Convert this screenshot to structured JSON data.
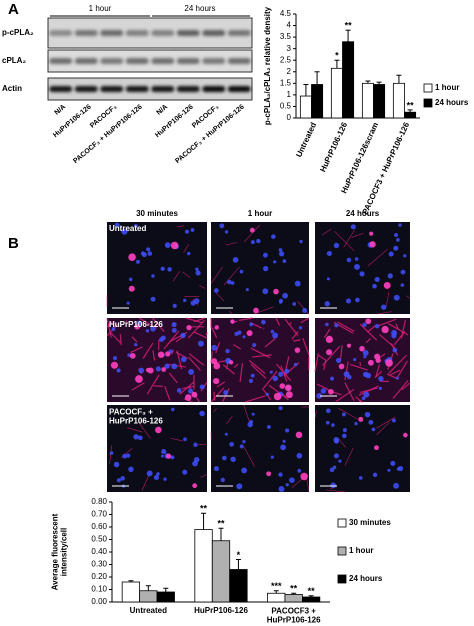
{
  "figure": {
    "panel_a": {
      "label": "A",
      "blot": {
        "groups": [
          "1 hour",
          "24 hours"
        ],
        "rows": [
          "p-cPLA₂",
          "cPLA₂",
          "Actin"
        ],
        "lanes": [
          "N/A",
          "HuPrP106-126",
          "PACOCF₃",
          "PACOCF₃ + HuPrP106-126",
          "N/A",
          "HuPrP106-126",
          "PACOCF₃",
          "PACOCF₃ + HuPrP106-126"
        ]
      }
    },
    "panel_b": {
      "label": "B",
      "columns": [
        "30 minutes",
        "1 hour",
        "24 hours"
      ],
      "rows": [
        "Untreated",
        "HuPrP106-126",
        "PACOCF₃ +\nHuPrP106-126"
      ]
    }
  },
  "chart_data": [
    {
      "type": "bar",
      "y_label": "p-cPLA₂/cPLA₂ relative density",
      "categories": [
        "Untreated",
        "HuPrP106-126",
        "HuPrP106-126scram",
        "PACOCF3 + HuPrP106-126"
      ],
      "series": [
        {
          "name": "1 hour",
          "color": "#ffffff",
          "values": [
            0.95,
            2.15,
            1.5,
            1.5
          ],
          "errors": [
            0.5,
            0.35,
            0.1,
            0.35
          ],
          "stars": [
            null,
            "*",
            null,
            null
          ]
        },
        {
          "name": "24 hours",
          "color": "#000000",
          "values": [
            1.45,
            3.3,
            1.45,
            0.25
          ],
          "errors": [
            0.55,
            0.5,
            0.1,
            0.1
          ],
          "stars": [
            null,
            "**",
            null,
            "**"
          ]
        }
      ],
      "ylim": [
        0,
        4.5
      ],
      "yticks": [
        0,
        0.5,
        1,
        1.5,
        2,
        2.5,
        3,
        3.5,
        4,
        4.5
      ],
      "legend": "right"
    },
    {
      "type": "bar",
      "y_label": "Average fluorescent\nintensity/cell",
      "categories": [
        "Untreated",
        "HuPrP106-126",
        "PACOCF3 +\nHuPrP106-126"
      ],
      "series": [
        {
          "name": "30 minutes",
          "color": "#ffffff",
          "values": [
            0.16,
            0.58,
            0.07
          ],
          "errors": [
            0.01,
            0.13,
            0.02
          ],
          "stars": [
            null,
            "**",
            "***"
          ]
        },
        {
          "name": "1 hour",
          "color": "#b0b0b0",
          "values": [
            0.09,
            0.49,
            0.06
          ],
          "errors": [
            0.04,
            0.1,
            0.01
          ],
          "stars": [
            null,
            "**",
            "**"
          ]
        },
        {
          "name": "24 hours",
          "color": "#000000",
          "values": [
            0.08,
            0.26,
            0.04
          ],
          "errors": [
            0.03,
            0.08,
            0.01
          ],
          "stars": [
            null,
            "*",
            "**"
          ]
        }
      ],
      "ylim": [
        0,
        0.8
      ],
      "yticks": [
        {
          "value": 0,
          "label": "0.00"
        },
        {
          "value": 0.1,
          "label": "0.10"
        },
        {
          "value": 0.2,
          "label": "0.20"
        },
        {
          "value": 0.3,
          "label": "0.30"
        },
        {
          "value": 0.4,
          "label": "0.40"
        },
        {
          "value": 0.5,
          "label": "0.50"
        },
        {
          "value": 0.6,
          "label": "0.60"
        },
        {
          "value": 0.7,
          "label": "0.70"
        },
        {
          "value": 0.8,
          "label": "0.80"
        }
      ],
      "legend": "right"
    }
  ]
}
